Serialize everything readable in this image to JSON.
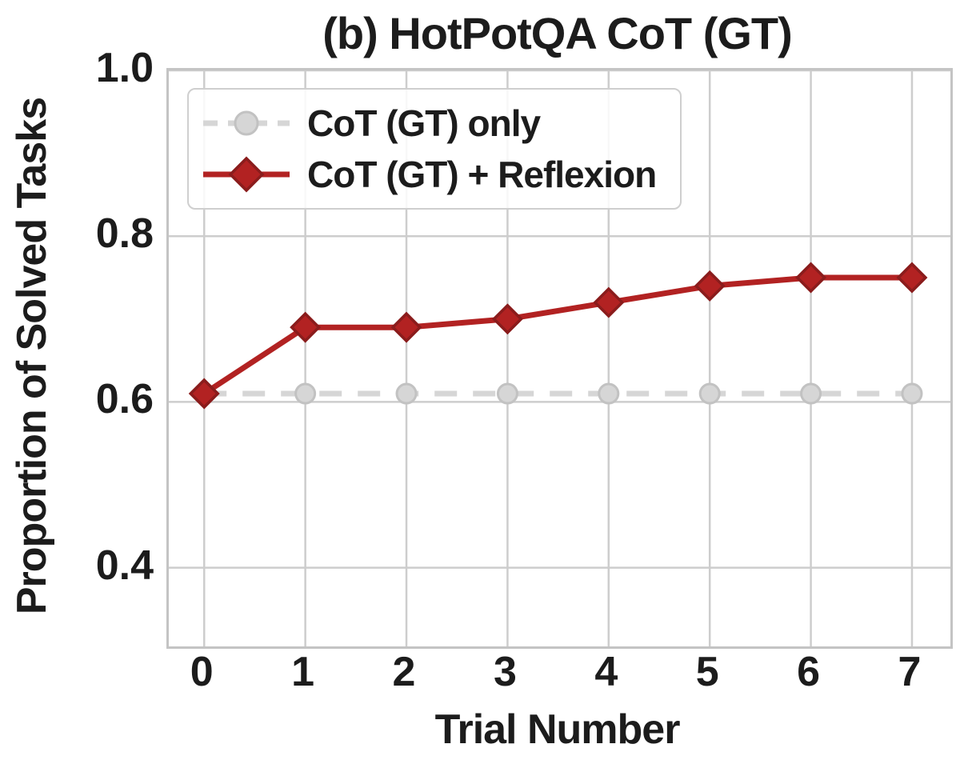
{
  "chart_data": {
    "type": "line",
    "title": "(b) HotPotQA CoT (GT)",
    "xlabel": "Trial Number",
    "ylabel": "Proportion of Solved Tasks",
    "x": [
      0,
      1,
      2,
      3,
      4,
      5,
      6,
      7
    ],
    "xtick_labels": [
      "0",
      "1",
      "2",
      "3",
      "4",
      "5",
      "6",
      "7"
    ],
    "yticks": [
      1.0,
      0.8,
      0.6,
      0.4
    ],
    "ytick_labels": [
      "1.0",
      "0.8",
      "0.6",
      "0.4"
    ],
    "xlim": [
      -0.35,
      7.38
    ],
    "ylim": [
      0.305,
      1.0
    ],
    "grid": true,
    "legend_position": "upper-left",
    "series": [
      {
        "name": "CoT (GT) only",
        "values": [
          0.61,
          0.61,
          0.61,
          0.61,
          0.61,
          0.61,
          0.61,
          0.61
        ],
        "color": "#d6d6d6",
        "marker_fill": "#d6d6d6",
        "marker_edge": "#c2c2c2",
        "line_style": "dashed",
        "marker": "circle"
      },
      {
        "name": "CoT (GT) + Reflexion",
        "values": [
          0.61,
          0.69,
          0.69,
          0.7,
          0.72,
          0.74,
          0.75,
          0.75
        ],
        "color": "#b22222",
        "marker_fill": "#b22222",
        "marker_edge": "#8a1c1c",
        "line_style": "solid",
        "marker": "diamond"
      }
    ],
    "colors": {
      "grid": "#cdcdcd",
      "spine": "#c4c4c4",
      "text": "#1c1c1c",
      "background": "#ffffff"
    }
  }
}
